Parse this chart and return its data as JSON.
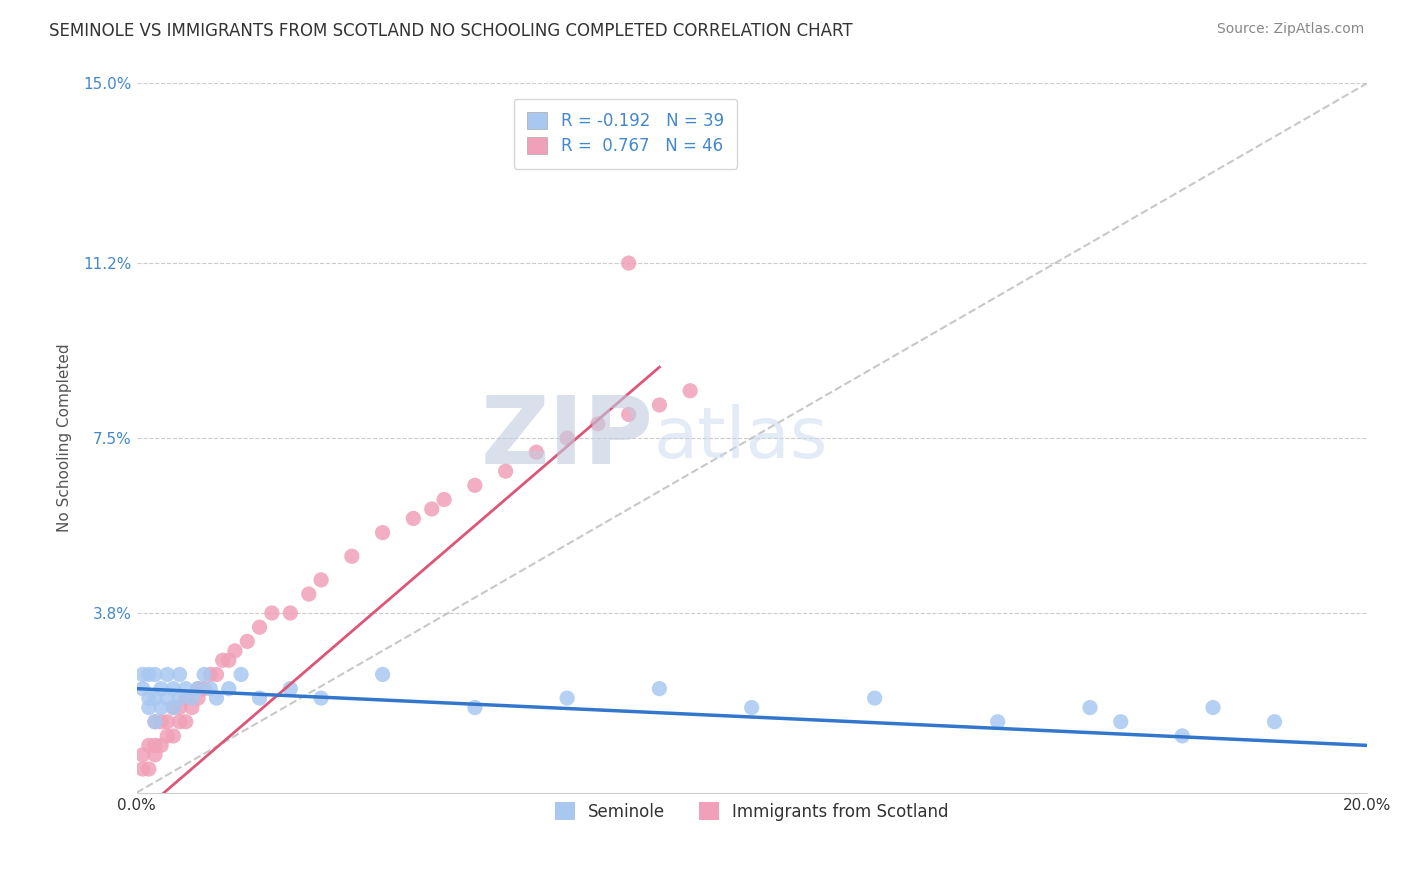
{
  "title": "SEMINOLE VS IMMIGRANTS FROM SCOTLAND NO SCHOOLING COMPLETED CORRELATION CHART",
  "source": "Source: ZipAtlas.com",
  "xlabel": "",
  "ylabel": "No Schooling Completed",
  "xlim": [
    0.0,
    0.2
  ],
  "ylim": [
    0.0,
    0.15
  ],
  "xtick_vals": [
    0.0,
    0.2
  ],
  "xtick_labels": [
    "0.0%",
    "20.0%"
  ],
  "ytick_labels": [
    "3.8%",
    "7.5%",
    "11.2%",
    "15.0%"
  ],
  "ytick_vals": [
    0.038,
    0.075,
    0.112,
    0.15
  ],
  "seminole_R": -0.192,
  "seminole_N": 39,
  "scotland_R": 0.767,
  "scotland_N": 46,
  "seminole_color": "#a8c8f0",
  "scotland_color": "#f0a0b8",
  "seminole_line_color": "#3377cc",
  "scotland_line_color": "#dd5577",
  "legend_R_color": "#4488cc",
  "watermark_zip": "ZIP",
  "watermark_atlas": "atlas",
  "watermark_color_zip": "#c0cce0",
  "watermark_color_atlas": "#c8d8ee",
  "seminole_x": [
    0.001,
    0.001,
    0.002,
    0.002,
    0.002,
    0.003,
    0.003,
    0.003,
    0.004,
    0.004,
    0.005,
    0.005,
    0.006,
    0.006,
    0.007,
    0.007,
    0.008,
    0.009,
    0.01,
    0.011,
    0.012,
    0.013,
    0.015,
    0.017,
    0.02,
    0.025,
    0.03,
    0.04,
    0.055,
    0.07,
    0.085,
    0.1,
    0.12,
    0.14,
    0.155,
    0.16,
    0.17,
    0.175,
    0.185
  ],
  "seminole_y": [
    0.022,
    0.025,
    0.018,
    0.02,
    0.025,
    0.015,
    0.02,
    0.025,
    0.018,
    0.022,
    0.02,
    0.025,
    0.018,
    0.022,
    0.02,
    0.025,
    0.022,
    0.02,
    0.022,
    0.025,
    0.022,
    0.02,
    0.022,
    0.025,
    0.02,
    0.022,
    0.02,
    0.025,
    0.018,
    0.02,
    0.022,
    0.018,
    0.02,
    0.015,
    0.018,
    0.015,
    0.012,
    0.018,
    0.015
  ],
  "scotland_x": [
    0.001,
    0.001,
    0.002,
    0.002,
    0.003,
    0.003,
    0.003,
    0.004,
    0.004,
    0.005,
    0.005,
    0.006,
    0.006,
    0.007,
    0.007,
    0.008,
    0.008,
    0.009,
    0.01,
    0.01,
    0.011,
    0.012,
    0.013,
    0.014,
    0.015,
    0.016,
    0.018,
    0.02,
    0.022,
    0.025,
    0.028,
    0.03,
    0.035,
    0.04,
    0.045,
    0.048,
    0.05,
    0.055,
    0.06,
    0.065,
    0.07,
    0.075,
    0.08,
    0.085,
    0.09,
    0.08
  ],
  "scotland_y": [
    0.005,
    0.008,
    0.005,
    0.01,
    0.008,
    0.01,
    0.015,
    0.01,
    0.015,
    0.012,
    0.015,
    0.012,
    0.018,
    0.015,
    0.018,
    0.015,
    0.02,
    0.018,
    0.02,
    0.022,
    0.022,
    0.025,
    0.025,
    0.028,
    0.028,
    0.03,
    0.032,
    0.035,
    0.038,
    0.038,
    0.042,
    0.045,
    0.05,
    0.055,
    0.058,
    0.06,
    0.062,
    0.065,
    0.068,
    0.072,
    0.075,
    0.078,
    0.08,
    0.082,
    0.085,
    0.112
  ]
}
